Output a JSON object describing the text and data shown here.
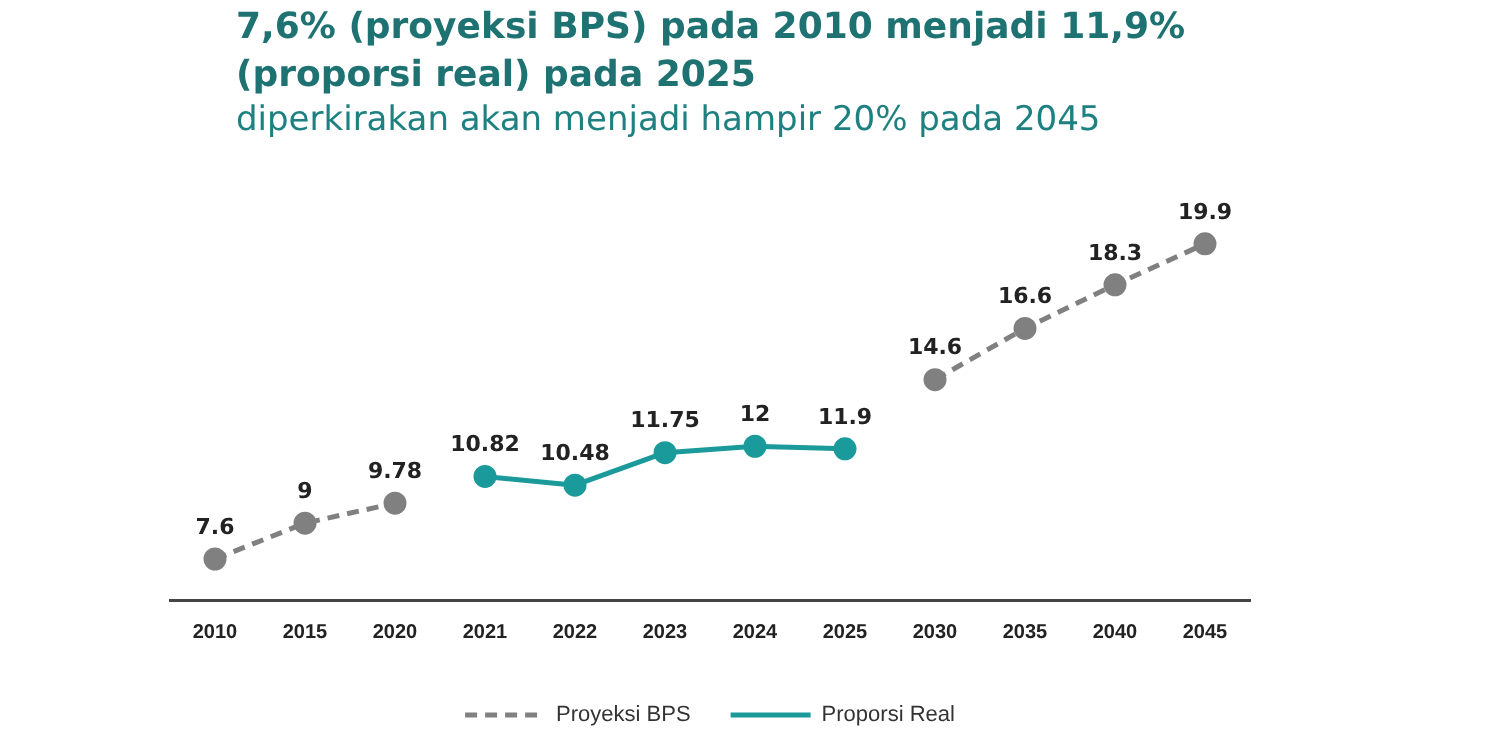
{
  "chart_data": {
    "type": "line",
    "title": "7,6% (proyeksi BPS) pada 2010 menjadi 11,9% (proporsi real) pada 2025",
    "subtitle": "diperkirakan akan menjadi hampir 20% pada 2045",
    "categories": [
      "2010",
      "2015",
      "2020",
      "2021",
      "2022",
      "2023",
      "2024",
      "2025",
      "2030",
      "2035",
      "2040",
      "2045"
    ],
    "series": [
      {
        "name": "Proyeksi BPS",
        "color": "#808080",
        "line_style": "dashed",
        "values": [
          7.6,
          9,
          9.78,
          null,
          null,
          null,
          null,
          null,
          14.6,
          16.6,
          18.3,
          19.9
        ]
      },
      {
        "name": "Proporsi Real",
        "color": "#1a9a9a",
        "line_style": "solid",
        "values": [
          null,
          null,
          null,
          10.82,
          10.48,
          11.75,
          12,
          11.9,
          null,
          null,
          null,
          null
        ]
      }
    ],
    "data_labels": true,
    "marker": "circle",
    "grid": false,
    "legend": "bottom",
    "tick_labels": "x"
  }
}
